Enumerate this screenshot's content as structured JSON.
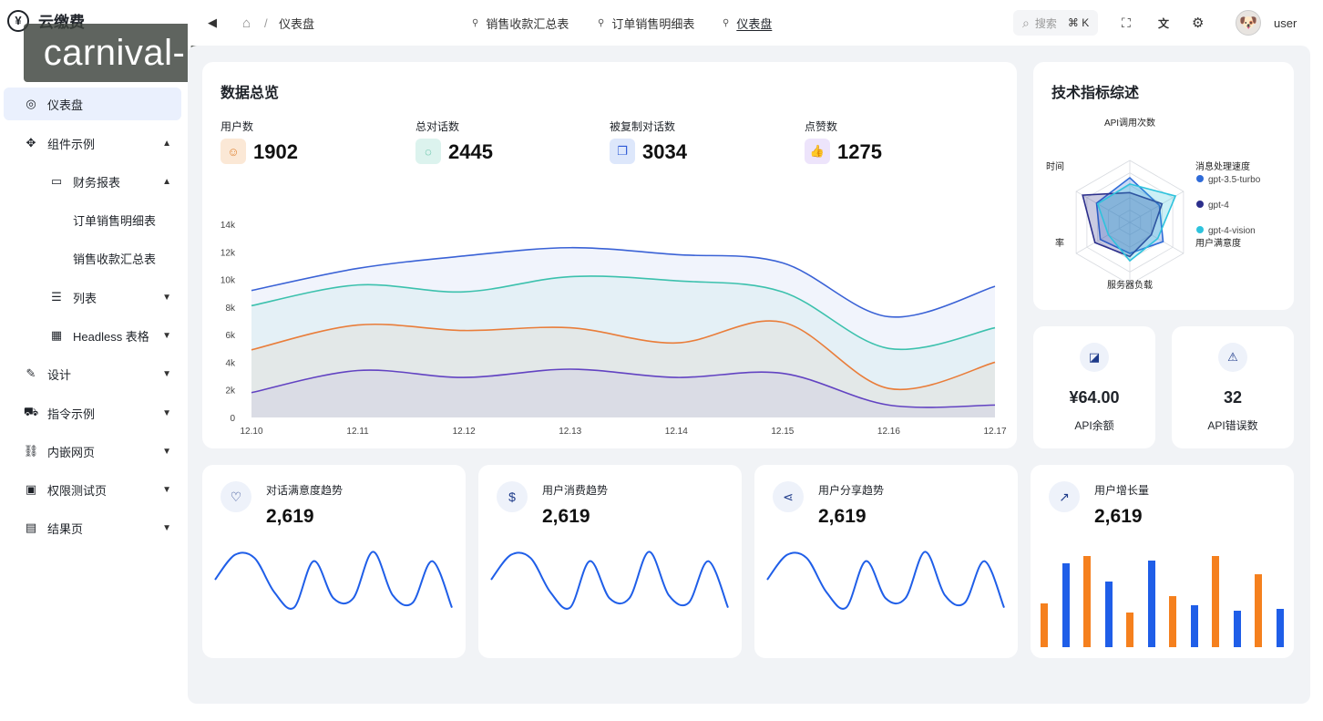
{
  "brand": {
    "logo": "¥",
    "title": "云缴费"
  },
  "watermark": "carnival-leyu.com.cn",
  "sidebar": {
    "items": [
      {
        "label": "仪表盘",
        "icon": "dashboard-icon",
        "glyph": "◎",
        "active": true,
        "chevron": ""
      },
      {
        "label": "组件示例",
        "icon": "components-icon",
        "glyph": "✥",
        "chevron": "▲"
      },
      {
        "label": "财务报表",
        "icon": "monitor-icon",
        "glyph": "▭",
        "chevron": "▲"
      },
      {
        "label": "订单销售明细表",
        "icon": "",
        "glyph": "",
        "chevron": ""
      },
      {
        "label": "销售收款汇总表",
        "icon": "",
        "glyph": "",
        "chevron": ""
      },
      {
        "label": "列表",
        "icon": "list-icon",
        "glyph": "☰",
        "chevron": "▼"
      },
      {
        "label": "Headless 表格",
        "icon": "table-icon",
        "glyph": "▦",
        "chevron": "▼"
      },
      {
        "label": "设计",
        "icon": "design-icon",
        "glyph": "✎",
        "chevron": "▼"
      },
      {
        "label": "指令示例",
        "icon": "directive-icon",
        "glyph": "⛟",
        "chevron": "▼"
      },
      {
        "label": "内嵌网页",
        "icon": "link-icon",
        "glyph": "⛓",
        "chevron": "▼"
      },
      {
        "label": "权限测试页",
        "icon": "lock-icon",
        "glyph": "▣",
        "chevron": "▼"
      },
      {
        "label": "结果页",
        "icon": "clipboard-icon",
        "glyph": "▤",
        "chevron": "▼"
      }
    ]
  },
  "topbar": {
    "back_glyph": "◀",
    "home_glyph": "⌂",
    "breadcrumb_sep": "/",
    "breadcrumb_current": "仪表盘",
    "tabs": [
      {
        "label": "销售收款汇总表",
        "active": false
      },
      {
        "label": "订单销售明细表",
        "active": false
      },
      {
        "label": "仪表盘",
        "active": true
      }
    ],
    "tab_pin_glyph": "⚲",
    "search_glyph": "⌕",
    "search_placeholder": "搜索",
    "search_shortcut": "⌘ K",
    "fullscreen_glyph": "⛶",
    "translate_glyph": "文",
    "settings_glyph": "⚙",
    "avatar_glyph": "🐶",
    "username": "user"
  },
  "overview": {
    "title": "数据总览",
    "stats": [
      {
        "label": "用户数",
        "value": "1902",
        "icon": "user-icon",
        "glyph": "☺",
        "bg": "#fbe8d6",
        "fg": "#e08434"
      },
      {
        "label": "总对话数",
        "value": "2445",
        "icon": "chat-icon",
        "glyph": "◌",
        "bg": "#dcf3ee",
        "fg": "#1ea77f"
      },
      {
        "label": "被复制对话数",
        "value": "3034",
        "icon": "copy-icon",
        "glyph": "❐",
        "bg": "#dde7fb",
        "fg": "#2b58d6"
      },
      {
        "label": "点赞数",
        "value": "1275",
        "icon": "thumbs-up-icon",
        "glyph": "👍",
        "bg": "#ede4fb",
        "fg": "#7a4cd6"
      }
    ]
  },
  "chart_data": [
    {
      "type": "area",
      "categories": [
        "12.10",
        "12.11",
        "12.12",
        "12.13",
        "12.14",
        "12.15",
        "12.16",
        "12.17"
      ],
      "ylim": [
        0,
        14000
      ],
      "yticks": [
        "0",
        "2k",
        "4k",
        "6k",
        "8k",
        "10k",
        "12k",
        "14k"
      ],
      "series": [
        {
          "color": "#3a62d6",
          "values": [
            9200,
            10800,
            11700,
            12300,
            11800,
            11200,
            7300,
            9500
          ]
        },
        {
          "color": "#3cc1ad",
          "values": [
            8100,
            9600,
            9100,
            10200,
            9900,
            9100,
            5000,
            6500
          ]
        },
        {
          "color": "#e97d3a",
          "values": [
            4900,
            6700,
            6300,
            6500,
            5400,
            6900,
            2100,
            4000
          ]
        },
        {
          "color": "#6243c2",
          "values": [
            1800,
            3400,
            2900,
            3500,
            2900,
            3200,
            900,
            900
          ]
        }
      ]
    },
    {
      "type": "radar",
      "title": "技术指标综述",
      "indicators": [
        "API调用次数",
        "消息处理速度",
        "用户满意度",
        "服务器负载",
        "率",
        "时间"
      ],
      "series": [
        {
          "name": "gpt-3.5-turbo",
          "color": "#2f6bd8",
          "values": [
            0.72,
            0.55,
            0.62,
            0.5,
            0.55,
            0.62
          ]
        },
        {
          "name": "gpt-4",
          "color": "#2c2f8c",
          "values": [
            0.48,
            0.6,
            0.4,
            0.55,
            0.65,
            0.88
          ]
        },
        {
          "name": "gpt-4-vision",
          "color": "#2ec3dd",
          "values": [
            0.62,
            0.85,
            0.52,
            0.62,
            0.4,
            0.6
          ]
        }
      ],
      "legend": "right"
    },
    {
      "type": "line",
      "title": "对话满意度趋势",
      "values": [
        20,
        36,
        34,
        12,
        2,
        32,
        8,
        8,
        38,
        10,
        5,
        32,
        2
      ]
    },
    {
      "type": "line",
      "title": "用户消费趋势",
      "values": [
        20,
        36,
        34,
        12,
        2,
        32,
        8,
        8,
        38,
        10,
        5,
        32,
        2
      ]
    },
    {
      "type": "line",
      "title": "用户分享趋势",
      "values": [
        20,
        36,
        34,
        12,
        2,
        32,
        8,
        8,
        38,
        10,
        5,
        32,
        2
      ]
    },
    {
      "type": "bar",
      "title": "用户增长量",
      "series": [
        {
          "color": "#f5801e",
          "values": [
            48,
            100,
            38,
            56,
            100,
            80
          ]
        },
        {
          "color": "#1f5ee8",
          "values": [
            92,
            72,
            95,
            46,
            40,
            42
          ]
        }
      ],
      "ylim": [
        0,
        110
      ]
    }
  ],
  "small_cards": [
    {
      "value": "¥64.00",
      "label": "API余额",
      "icon": "wallet-icon",
      "glyph": "◪"
    },
    {
      "value": "32",
      "label": "API错误数",
      "icon": "warning-icon",
      "glyph": "⚠"
    }
  ],
  "trends": [
    {
      "title": "对话满意度趋势",
      "value": "2,619",
      "icon": "heart-chat-icon",
      "glyph": "♡"
    },
    {
      "title": "用户消费趋势",
      "value": "2,619",
      "icon": "dollar-icon",
      "glyph": "$"
    },
    {
      "title": "用户分享趋势",
      "value": "2,619",
      "icon": "share-icon",
      "glyph": "⋖"
    },
    {
      "title": "用户增长量",
      "value": "2,619",
      "icon": "growth-icon",
      "glyph": "↗"
    }
  ]
}
